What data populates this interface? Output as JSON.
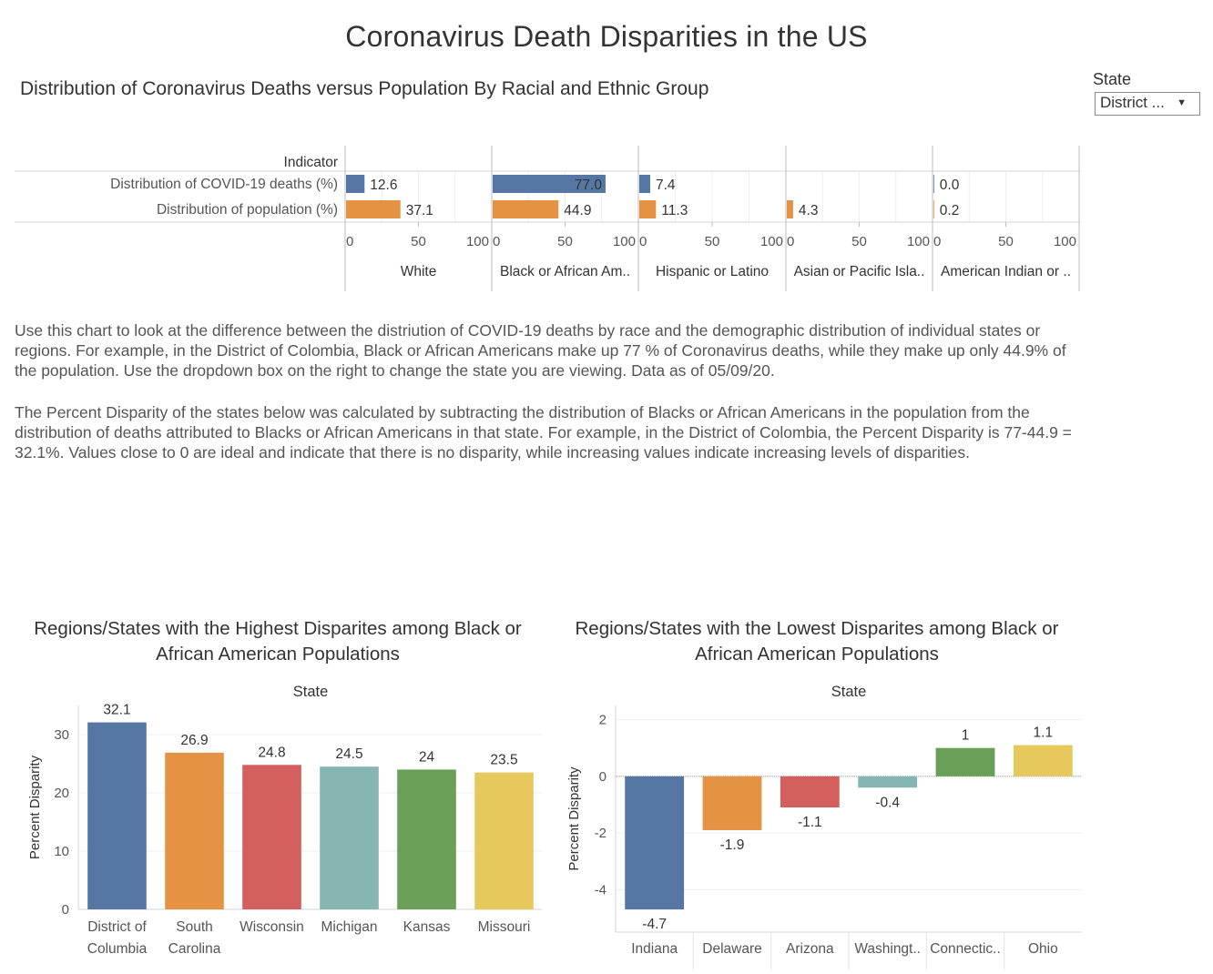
{
  "dashboard_title": "Coronavirus Death Disparities in the US",
  "subtitle": "Distribution of Coronavirus Deaths versus  Population By Racial and Ethnic Group",
  "filter": {
    "label": "State",
    "value": "District ...",
    "icon": "dropdown-caret-icon"
  },
  "paragraphs": [
    "Use this chart to look at the difference between the distriution of COVID-19 deaths by race and the demographic distribution of individual states or regions.  For example, in the District of Colombia, Black or African Americans make up 77 % of Coronavirus deaths, while they make up only 44.9% of the population.  Use the dropdown box on the right to change the state you are viewing.  Data as of 05/09/20.",
    "The Percent Disparity of the states below was calculated by subtracting the distribution of Blacks or African Americans in the population from the distribution of deaths attributed to Blacks or African Americans in that state.  For example, in the District of Colombia, the Percent Disparity is 77-44.9 = 32.1%.  Values close to 0 are ideal and indicate that there is no disparity, while increasing values indicate increasing levels of disparities."
  ],
  "colors": {
    "deaths": "#5677a4",
    "population": "#e49344",
    "series": [
      "#5677a4",
      "#e49344",
      "#d35f5f",
      "#85b6b2",
      "#6a9f58",
      "#e7c85c"
    ]
  },
  "chart_data": [
    {
      "type": "bar",
      "orientation": "horizontal",
      "row_header": "Indicator",
      "rows": [
        "Distribution of COVID-19 deaths (%)",
        "Distribution of population (%)"
      ],
      "groups": [
        "White",
        "Black or African Am..",
        "Hispanic or Latino",
        "Asian or Pacific Isla..",
        "American Indian or .."
      ],
      "series": [
        {
          "values": [
            12.6,
            77.0,
            7.4,
            null,
            0.0
          ],
          "labels": [
            "12.6",
            "77.0",
            "7.4",
            "",
            "0.0"
          ]
        },
        {
          "values": [
            37.1,
            44.9,
            11.3,
            4.3,
            0.2
          ],
          "labels": [
            "37.1",
            "44.9",
            "11.3",
            "4.3",
            "0.2"
          ]
        }
      ],
      "ticks": [
        "0",
        "50",
        "100"
      ],
      "xlim": [
        0,
        100
      ]
    },
    {
      "type": "bar",
      "title": "Regions/States with the Highest Disparites among Black or African American Populations",
      "header": "State",
      "ylabel": "Percent Disparity",
      "categories": [
        [
          "District of",
          "Columbia"
        ],
        [
          "South",
          "Carolina"
        ],
        [
          "Wisconsin"
        ],
        [
          "Michigan"
        ],
        [
          "Kansas"
        ],
        [
          "Missouri"
        ]
      ],
      "values": [
        32.1,
        26.9,
        24.8,
        24.5,
        24,
        23.5
      ],
      "labels": [
        "32.1",
        "26.9",
        "24.8",
        "24.5",
        "24",
        "23.5"
      ],
      "yticks": [
        "0",
        "10",
        "20",
        "30"
      ],
      "ylim": [
        0,
        35
      ]
    },
    {
      "type": "bar",
      "title": "Regions/States with the Lowest Disparites among Black or African American Populations",
      "header": "State",
      "ylabel": "Percent Disparity",
      "categories": [
        [
          "Indiana"
        ],
        [
          "Delaware"
        ],
        [
          "Arizona"
        ],
        [
          "Washingt.."
        ],
        [
          "Connectic.."
        ],
        [
          "Ohio"
        ]
      ],
      "values": [
        -4.7,
        -1.9,
        -1.1,
        -0.4,
        1,
        1.1
      ],
      "labels": [
        "-4.7",
        "-1.9",
        "-1.1",
        "-0.4",
        "1",
        "1.1"
      ],
      "yticks": [
        "2",
        "0",
        "-2",
        "-4"
      ],
      "ylim": [
        -5.5,
        2.5
      ]
    }
  ]
}
